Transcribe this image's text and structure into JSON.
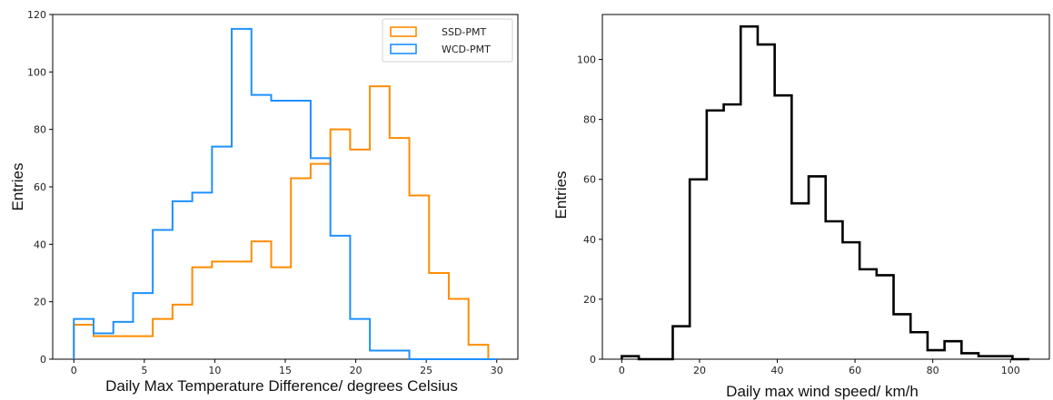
{
  "chart_data": [
    {
      "type": "histogram",
      "xlabel": "Daily Max Temperature Difference/ degrees Celsius",
      "ylabel": "Entries",
      "xlim": [
        -1.5,
        31.5
      ],
      "ylim": [
        0,
        120
      ],
      "xticks": [
        0,
        5,
        10,
        15,
        20,
        25,
        30
      ],
      "yticks": [
        0,
        20,
        40,
        60,
        80,
        100,
        120
      ],
      "legend_position": "top-right",
      "grid": false,
      "series": [
        {
          "name": "SSD-PMT",
          "color": "#ff8c00",
          "bin_edges": [
            0,
            1.4,
            2.8,
            4.2,
            5.6,
            7.0,
            8.4,
            9.8,
            11.2,
            12.6,
            14.0,
            15.4,
            16.8,
            18.2,
            19.6,
            21.0,
            22.4,
            23.8,
            25.2,
            26.6,
            28.0,
            29.4,
            30.0
          ],
          "counts": [
            12,
            8,
            8,
            8,
            14,
            19,
            32,
            34,
            34,
            41,
            32,
            63,
            68,
            80,
            73,
            95,
            77,
            57,
            30,
            21,
            5,
            0
          ]
        },
        {
          "name": "WCD-PMT",
          "color": "#1e90ff",
          "bin_edges": [
            0,
            1.4,
            2.8,
            4.2,
            5.6,
            7.0,
            8.4,
            9.8,
            11.2,
            12.6,
            14.0,
            15.4,
            16.8,
            18.2,
            19.6,
            21.0,
            22.4,
            23.8,
            25.2,
            26.6,
            28.0,
            29.4,
            30.0
          ],
          "counts": [
            14,
            9,
            13,
            23,
            45,
            55,
            58,
            74,
            115,
            92,
            90,
            90,
            70,
            43,
            14,
            3,
            3,
            0,
            0,
            0,
            0,
            0
          ]
        }
      ]
    },
    {
      "type": "histogram",
      "xlabel": "Daily max wind speed/ km/h",
      "ylabel": "Entries",
      "xlim": [
        -5,
        110
      ],
      "ylim": [
        0,
        115
      ],
      "xticks": [
        0,
        20,
        40,
        60,
        80,
        100
      ],
      "yticks": [
        0,
        20,
        40,
        60,
        80,
        100
      ],
      "grid": false,
      "series": [
        {
          "name": "",
          "color": "#000000",
          "bin_edges": [
            0,
            4.37,
            8.74,
            13.11,
            17.48,
            21.85,
            26.22,
            30.59,
            34.96,
            39.33,
            43.7,
            48.07,
            52.44,
            56.81,
            61.18,
            65.55,
            69.92,
            74.29,
            78.66,
            83.03,
            87.4,
            91.77,
            96.14,
            100.51,
            104.88
          ],
          "counts": [
            1,
            0,
            0,
            11,
            60,
            83,
            85,
            111,
            105,
            88,
            52,
            61,
            46,
            39,
            30,
            28,
            15,
            9,
            3,
            6,
            2,
            1,
            1,
            0
          ]
        }
      ]
    }
  ]
}
